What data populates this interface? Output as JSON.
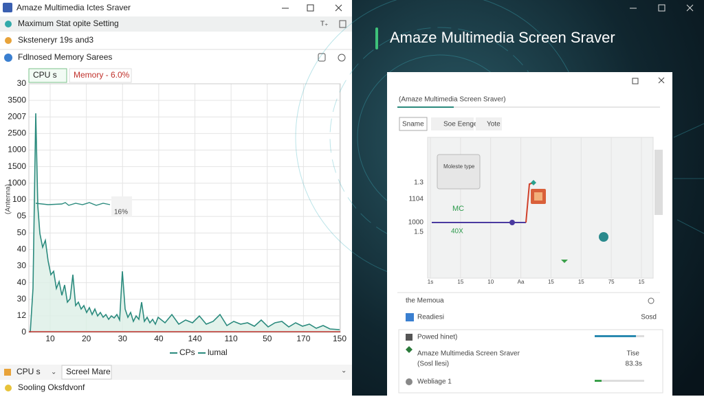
{
  "left_window": {
    "title": "Amaze Multimedia Ictes Sraver",
    "rows": [
      "Maximum Stat opite Setting",
      "Sksteneryr 19s and3",
      "Fdlnosed Memory Sarees"
    ],
    "chips": [
      "CPU s",
      "Memory - 6.0%"
    ],
    "y_axis_title": "(Antenna)",
    "y_labels": [
      "30",
      "3500",
      "2007",
      "2500",
      "1000",
      "1500",
      "1000",
      "100",
      "05",
      "50",
      "40",
      "30",
      "40",
      "30",
      "12",
      "0"
    ],
    "x_labels": [
      "10",
      "20",
      "30",
      "40",
      "140",
      "110",
      "50",
      "170",
      "150"
    ],
    "annotation": "16%",
    "legend": [
      "CPs",
      "lumal"
    ],
    "footer": {
      "dropdown": "CPU s",
      "button": "Screel Mare",
      "status": "Sooling Oksfdvonf"
    }
  },
  "right_window": {
    "title": "Amaze Multimedia Screen Sraver",
    "dialog": {
      "heading": "(Amaze Multimedia Screen Sraver)",
      "tabs": [
        "Sname",
        "Soe Eenge",
        "Yote"
      ],
      "chart_legend": "Moleste type",
      "y_labels": [
        "1.3",
        "1104",
        "1000",
        "1.5"
      ],
      "x_labels": [
        "1s",
        "15",
        "10",
        "Aa",
        "15",
        "15",
        "75",
        "15"
      ],
      "series_labels": [
        "MC",
        "40X"
      ],
      "section": "the Memoua",
      "readiness": {
        "label": "Readiesi",
        "value": "Sosd"
      },
      "list": [
        {
          "name": "Powed hinet)"
        },
        {
          "name": "Amaze Multimedia Screen Sraver",
          "sub": "(Sosl llesi)",
          "status": "Tise",
          "value": "83.3s"
        },
        {
          "name": "Webliage 1"
        }
      ]
    }
  }
}
